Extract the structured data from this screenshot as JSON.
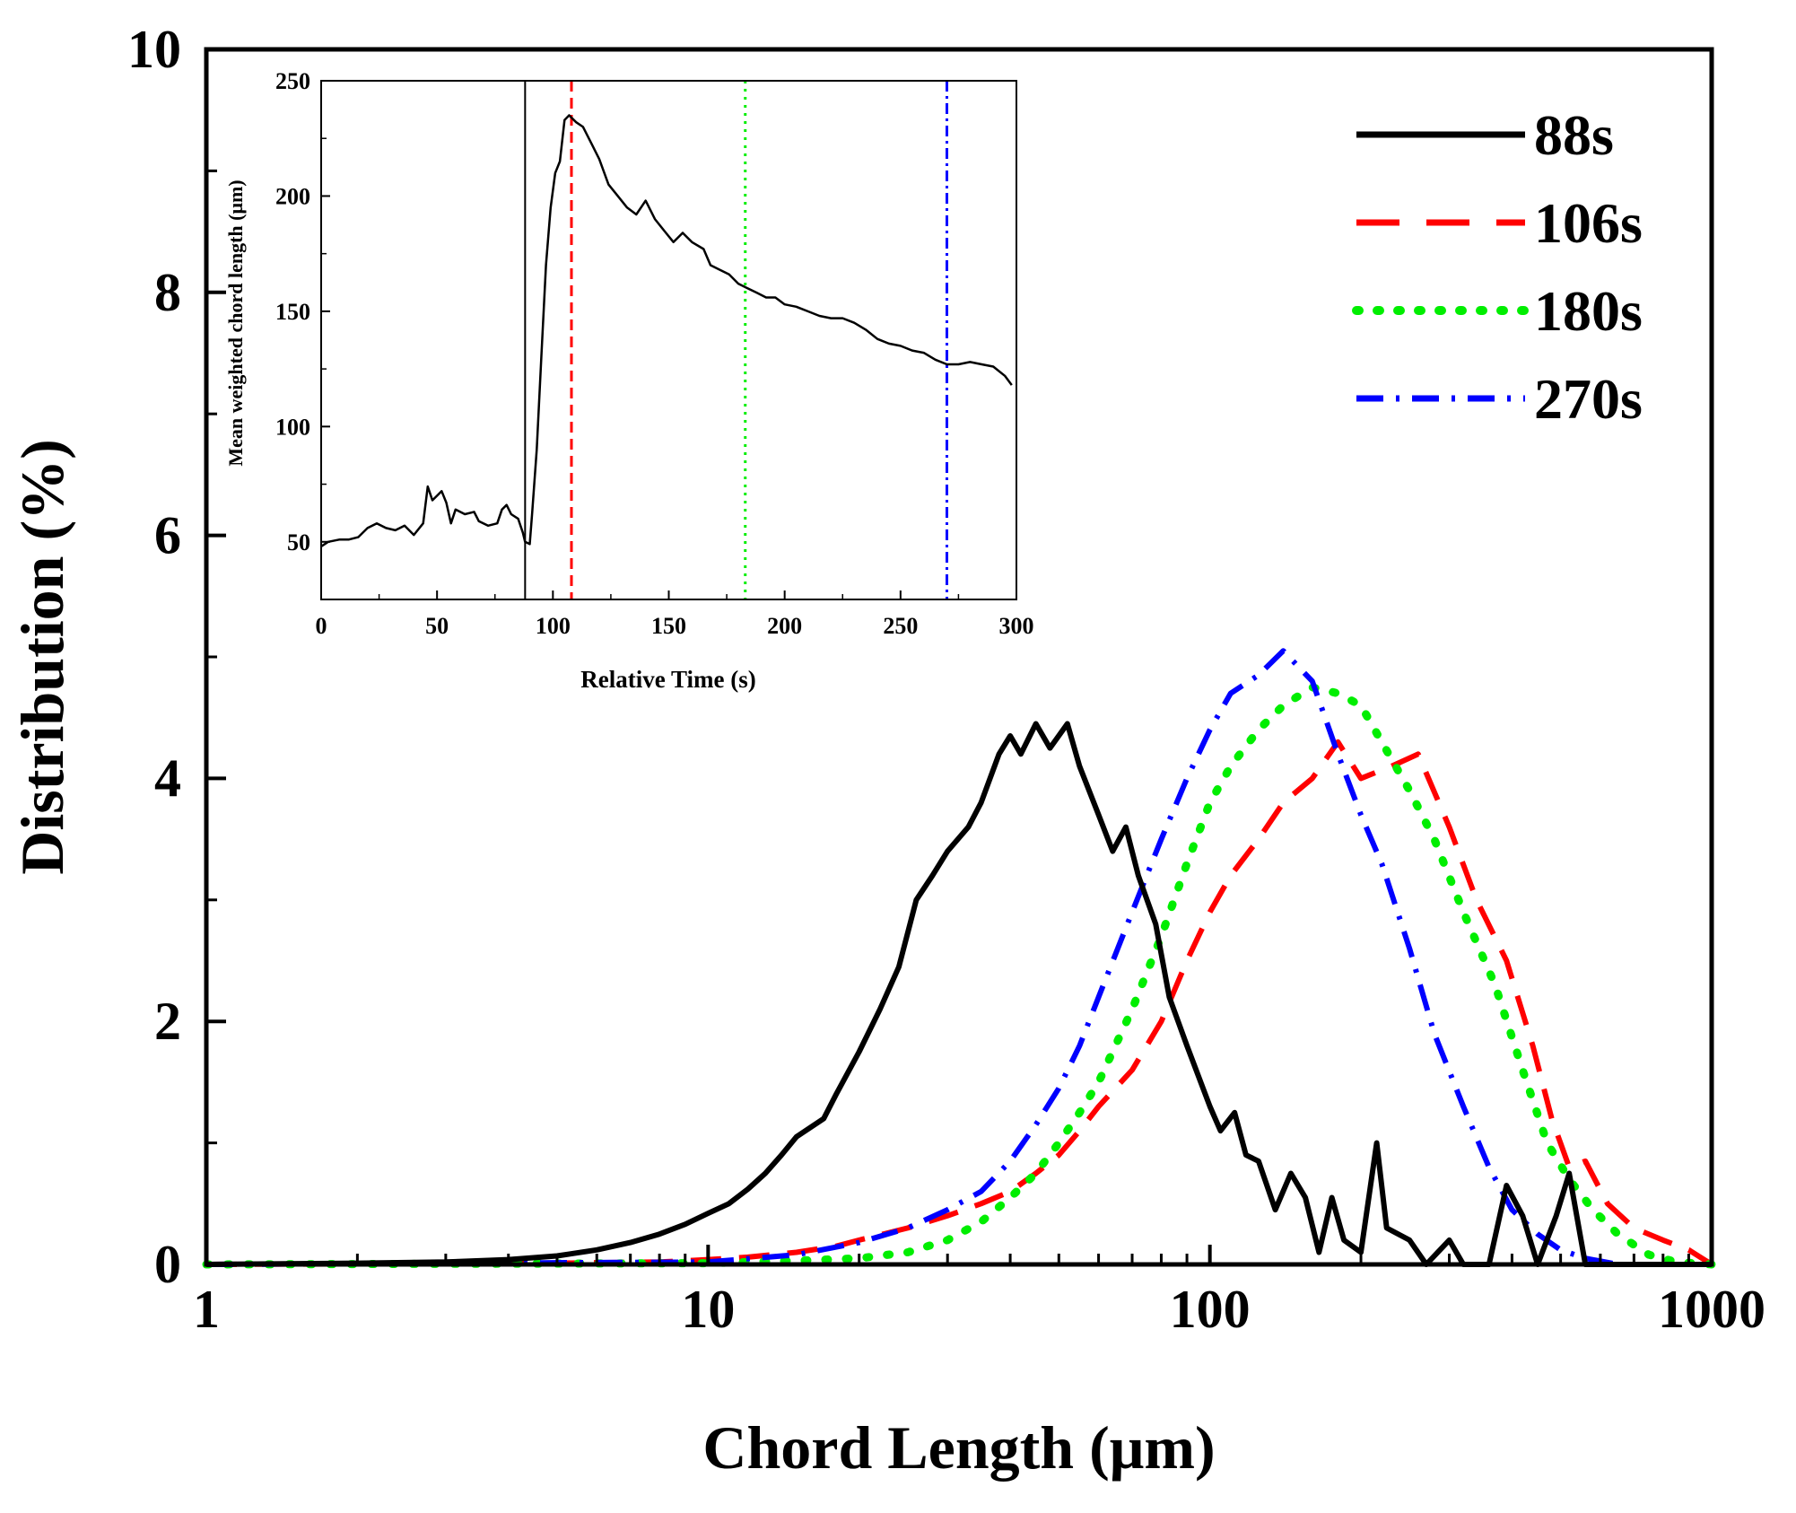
{
  "chart_data": [
    {
      "id": "main",
      "type": "line",
      "xscale": "log",
      "xlabel": "Chord Length (μm)",
      "ylabel": "Distribution (%)",
      "xlim": [
        1,
        1000
      ],
      "ylim": [
        0,
        10
      ],
      "xticks": [
        1,
        10,
        100,
        1000
      ],
      "xtick_labels": [
        "1",
        "10",
        "100",
        "1000"
      ],
      "yticks": [
        0,
        2,
        4,
        6,
        8,
        10
      ],
      "ytick_labels": [
        "0",
        "2",
        "4",
        "6",
        "8",
        "10"
      ],
      "legend_position": "top-right",
      "series": [
        {
          "name": "88s",
          "color": "#000000",
          "dash": "solid",
          "points": [
            [
              1,
              0
            ],
            [
              2,
              0.01
            ],
            [
              3,
              0.02
            ],
            [
              4,
              0.04
            ],
            [
              5,
              0.07
            ],
            [
              6,
              0.12
            ],
            [
              7,
              0.18
            ],
            [
              8,
              0.25
            ],
            [
              9,
              0.33
            ],
            [
              10,
              0.42
            ],
            [
              11,
              0.5
            ],
            [
              12,
              0.62
            ],
            [
              13,
              0.75
            ],
            [
              14,
              0.9
            ],
            [
              15,
              1.05
            ],
            [
              17,
              1.2
            ],
            [
              18,
              1.4
            ],
            [
              20,
              1.75
            ],
            [
              22,
              2.1
            ],
            [
              24,
              2.45
            ],
            [
              26,
              3.0
            ],
            [
              28,
              3.2
            ],
            [
              30,
              3.4
            ],
            [
              33,
              3.6
            ],
            [
              35,
              3.8
            ],
            [
              38,
              4.2
            ],
            [
              40,
              4.35
            ],
            [
              42,
              4.2
            ],
            [
              45,
              4.45
            ],
            [
              48,
              4.25
            ],
            [
              52,
              4.45
            ],
            [
              55,
              4.1
            ],
            [
              60,
              3.7
            ],
            [
              64,
              3.4
            ],
            [
              68,
              3.6
            ],
            [
              72,
              3.2
            ],
            [
              78,
              2.8
            ],
            [
              83,
              2.2
            ],
            [
              90,
              1.8
            ],
            [
              100,
              1.3
            ],
            [
              105,
              1.1
            ],
            [
              112,
              1.25
            ],
            [
              118,
              0.9
            ],
            [
              125,
              0.85
            ],
            [
              135,
              0.45
            ],
            [
              145,
              0.75
            ],
            [
              155,
              0.55
            ],
            [
              165,
              0.1
            ],
            [
              175,
              0.55
            ],
            [
              185,
              0.2
            ],
            [
              200,
              0.1
            ],
            [
              215,
              1.0
            ],
            [
              225,
              0.3
            ],
            [
              250,
              0.2
            ],
            [
              270,
              0.0
            ],
            [
              300,
              0.2
            ],
            [
              320,
              0.0
            ],
            [
              360,
              0.0
            ],
            [
              390,
              0.65
            ],
            [
              420,
              0.4
            ],
            [
              450,
              0.0
            ],
            [
              490,
              0.4
            ],
            [
              520,
              0.75
            ],
            [
              560,
              0.0
            ],
            [
              1000,
              0.0
            ]
          ]
        },
        {
          "name": "106s",
          "color": "#ff0000",
          "dash": "long-dash",
          "points": [
            [
              1,
              0
            ],
            [
              5,
              0.01
            ],
            [
              8,
              0.02
            ],
            [
              10,
              0.04
            ],
            [
              12,
              0.06
            ],
            [
              15,
              0.1
            ],
            [
              18,
              0.15
            ],
            [
              20,
              0.2
            ],
            [
              25,
              0.3
            ],
            [
              30,
              0.4
            ],
            [
              35,
              0.5
            ],
            [
              40,
              0.6
            ],
            [
              45,
              0.75
            ],
            [
              50,
              0.9
            ],
            [
              55,
              1.1
            ],
            [
              60,
              1.3
            ],
            [
              70,
              1.6
            ],
            [
              80,
              2.0
            ],
            [
              90,
              2.5
            ],
            [
              100,
              2.9
            ],
            [
              110,
              3.2
            ],
            [
              125,
              3.5
            ],
            [
              140,
              3.8
            ],
            [
              160,
              4.0
            ],
            [
              180,
              4.3
            ],
            [
              200,
              4.0
            ],
            [
              230,
              4.1
            ],
            [
              260,
              4.2
            ],
            [
              300,
              3.6
            ],
            [
              340,
              3.0
            ],
            [
              390,
              2.5
            ],
            [
              440,
              1.8
            ],
            [
              480,
              1.2
            ],
            [
              520,
              0.8
            ],
            [
              560,
              0.85
            ],
            [
              620,
              0.5
            ],
            [
              700,
              0.3
            ],
            [
              800,
              0.2
            ],
            [
              900,
              0.12
            ],
            [
              1000,
              0.0
            ]
          ]
        },
        {
          "name": "180s",
          "color": "#00ee00",
          "dash": "dot",
          "points": [
            [
              1,
              0
            ],
            [
              10,
              0.01
            ],
            [
              15,
              0.03
            ],
            [
              20,
              0.05
            ],
            [
              25,
              0.1
            ],
            [
              30,
              0.2
            ],
            [
              35,
              0.35
            ],
            [
              40,
              0.55
            ],
            [
              45,
              0.75
            ],
            [
              50,
              1.0
            ],
            [
              55,
              1.25
            ],
            [
              60,
              1.5
            ],
            [
              70,
              2.1
            ],
            [
              80,
              2.7
            ],
            [
              90,
              3.3
            ],
            [
              100,
              3.8
            ],
            [
              110,
              4.1
            ],
            [
              125,
              4.4
            ],
            [
              140,
              4.6
            ],
            [
              160,
              4.75
            ],
            [
              180,
              4.7
            ],
            [
              200,
              4.6
            ],
            [
              220,
              4.3
            ],
            [
              250,
              3.9
            ],
            [
              280,
              3.5
            ],
            [
              320,
              2.9
            ],
            [
              370,
              2.3
            ],
            [
              420,
              1.6
            ],
            [
              470,
              1.0
            ],
            [
              520,
              0.7
            ],
            [
              580,
              0.45
            ],
            [
              650,
              0.25
            ],
            [
              750,
              0.08
            ],
            [
              850,
              0.02
            ],
            [
              1000,
              0.0
            ]
          ]
        },
        {
          "name": "270s",
          "color": "#0000ff",
          "dash": "dash-dot",
          "points": [
            [
              1,
              0
            ],
            [
              10,
              0.02
            ],
            [
              15,
              0.08
            ],
            [
              20,
              0.18
            ],
            [
              25,
              0.3
            ],
            [
              30,
              0.45
            ],
            [
              35,
              0.6
            ],
            [
              40,
              0.85
            ],
            [
              45,
              1.15
            ],
            [
              50,
              1.45
            ],
            [
              55,
              1.8
            ],
            [
              60,
              2.2
            ],
            [
              70,
              2.9
            ],
            [
              80,
              3.5
            ],
            [
              90,
              4.0
            ],
            [
              100,
              4.4
            ],
            [
              110,
              4.7
            ],
            [
              125,
              4.85
            ],
            [
              140,
              5.05
            ],
            [
              160,
              4.8
            ],
            [
              180,
              4.2
            ],
            [
              200,
              3.7
            ],
            [
              220,
              3.3
            ],
            [
              250,
              2.6
            ],
            [
              280,
              1.9
            ],
            [
              320,
              1.3
            ],
            [
              360,
              0.8
            ],
            [
              400,
              0.45
            ],
            [
              450,
              0.25
            ],
            [
              500,
              0.12
            ],
            [
              560,
              0.05
            ],
            [
              650,
              0.0
            ],
            [
              1000,
              0.0
            ]
          ]
        }
      ]
    },
    {
      "id": "inset",
      "type": "line",
      "xlabel": "Relative Time (s)",
      "ylabel": "Mean weighted chord length (μm)",
      "xlim": [
        0,
        300
      ],
      "ylim": [
        25,
        250
      ],
      "xticks": [
        0,
        50,
        100,
        150,
        200,
        250,
        300
      ],
      "xtick_labels": [
        "0",
        "50",
        "100",
        "150",
        "200",
        "250",
        "300"
      ],
      "yticks": [
        50,
        100,
        150,
        200,
        250
      ],
      "ytick_labels": [
        "50",
        "100",
        "150",
        "200",
        "250"
      ],
      "series": [
        {
          "name": "mean weighted chord length",
          "color": "#000000",
          "points": [
            [
              0,
              48
            ],
            [
              3,
              50
            ],
            [
              8,
              51
            ],
            [
              12,
              51
            ],
            [
              16,
              52
            ],
            [
              20,
              56
            ],
            [
              24,
              58
            ],
            [
              28,
              56
            ],
            [
              32,
              55
            ],
            [
              36,
              57
            ],
            [
              40,
              53
            ],
            [
              44,
              58
            ],
            [
              46,
              74
            ],
            [
              48,
              68
            ],
            [
              50,
              70
            ],
            [
              52,
              72
            ],
            [
              54,
              67
            ],
            [
              56,
              58
            ],
            [
              58,
              64
            ],
            [
              62,
              62
            ],
            [
              66,
              63
            ],
            [
              68,
              59
            ],
            [
              72,
              57
            ],
            [
              76,
              58
            ],
            [
              78,
              64
            ],
            [
              80,
              66
            ],
            [
              82,
              62
            ],
            [
              85,
              60
            ],
            [
              87,
              54
            ],
            [
              88,
              50
            ],
            [
              90,
              49
            ],
            [
              91,
              62
            ],
            [
              93,
              90
            ],
            [
              95,
              130
            ],
            [
              97,
              170
            ],
            [
              99,
              195
            ],
            [
              101,
              210
            ],
            [
              103,
              215
            ],
            [
              105,
              233
            ],
            [
              107,
              235
            ],
            [
              110,
              232
            ],
            [
              113,
              230
            ],
            [
              117,
              222
            ],
            [
              120,
              216
            ],
            [
              124,
              205
            ],
            [
              128,
              200
            ],
            [
              132,
              195
            ],
            [
              136,
              192
            ],
            [
              140,
              198
            ],
            [
              144,
              190
            ],
            [
              148,
              185
            ],
            [
              152,
              180
            ],
            [
              156,
              184
            ],
            [
              160,
              180
            ],
            [
              165,
              177
            ],
            [
              168,
              170
            ],
            [
              172,
              168
            ],
            [
              176,
              166
            ],
            [
              180,
              162
            ],
            [
              184,
              160
            ],
            [
              188,
              158
            ],
            [
              192,
              156
            ],
            [
              196,
              156
            ],
            [
              200,
              153
            ],
            [
              205,
              152
            ],
            [
              210,
              150
            ],
            [
              215,
              148
            ],
            [
              220,
              147
            ],
            [
              225,
              147
            ],
            [
              230,
              145
            ],
            [
              235,
              142
            ],
            [
              240,
              138
            ],
            [
              245,
              136
            ],
            [
              250,
              135
            ],
            [
              255,
              133
            ],
            [
              260,
              132
            ],
            [
              265,
              129
            ],
            [
              270,
              127
            ],
            [
              275,
              127
            ],
            [
              280,
              128
            ],
            [
              285,
              127
            ],
            [
              290,
              126
            ],
            [
              295,
              122
            ],
            [
              298,
              118
            ]
          ]
        }
      ],
      "markers": [
        {
          "name": "88 s marker",
          "x": 88,
          "color": "#000000",
          "dash": "solid"
        },
        {
          "name": "106 s marker",
          "x": 108,
          "color": "#ff0000",
          "dash": "dash"
        },
        {
          "name": "180 s marker",
          "x": 183,
          "color": "#00ee00",
          "dash": "dot"
        },
        {
          "name": "270 s marker",
          "x": 270,
          "color": "#0000ff",
          "dash": "dash-dot"
        }
      ]
    }
  ]
}
